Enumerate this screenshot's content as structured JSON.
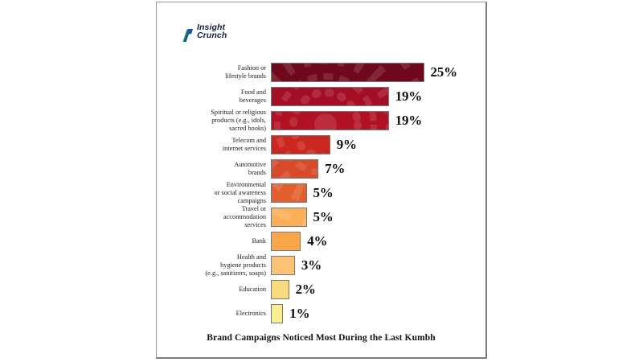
{
  "brand": {
    "name_line1": "Insight",
    "name_line2": "Crunch",
    "icon": "step-line-chart-icon",
    "logo_blue": "#1b51a5",
    "logo_green": "#2aa14e",
    "logo_text_color": "#121f3d"
  },
  "card": {
    "background": "#ffffff",
    "border_color": "#8f8f8f"
  },
  "chart_data": {
    "type": "bar",
    "orientation": "horizontal",
    "title": "Brand Campaigns Noticed Most During the Last Kumbh",
    "value_unit": "%",
    "xlim": [
      0,
      25
    ],
    "grid": false,
    "legend": false,
    "watermark": "mandala-pattern",
    "bar_border_color": "#787878",
    "categories": [
      "Fashion or\nlifestyle brands",
      "Food and\nbeverages",
      "Spiritual or religious\nproducts (e.g., idols,\nsacred books)",
      "Telecom and\ninternet services",
      "Automotive\nbrands",
      "Environmental\nor social awareness\ncampaigns",
      "Travel or\naccommodation\nservices",
      "Bank",
      "Health and\nhygiene products\n(e.g., sanitizers, soaps)",
      "Education",
      "Electronics"
    ],
    "values": [
      25,
      19,
      19,
      9,
      7,
      5,
      5,
      4,
      3,
      2,
      1
    ],
    "value_labels": [
      "25%",
      "19%",
      "19%",
      "9%",
      "7%",
      "5%",
      "5%",
      "4%",
      "3%",
      "2%",
      "1%"
    ],
    "bar_colors": [
      "#6f081c",
      "#a40e24",
      "#b11123",
      "#c9271f",
      "#d74b2a",
      "#e25e2d",
      "#fbb058",
      "#faa74b",
      "#fcc377",
      "#f8da7d",
      "#faee8e"
    ]
  }
}
